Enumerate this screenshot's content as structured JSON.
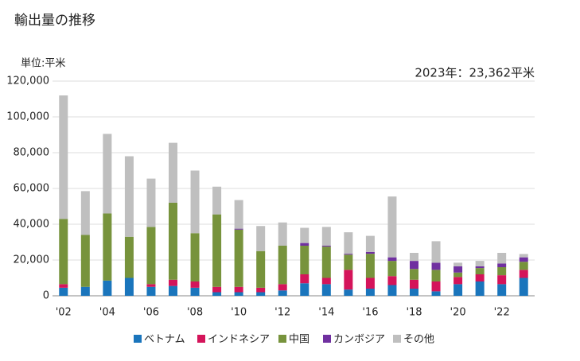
{
  "chart_data": {
    "type": "stacked-bar",
    "title": "輸出量の推移",
    "unit_label": "単位:平米",
    "annotation": "2023年：23,362平米",
    "categories": [
      "'02",
      null,
      "'04",
      null,
      "'06",
      null,
      "'08",
      null,
      "'10",
      null,
      "'12",
      null,
      "'14",
      null,
      "'16",
      null,
      "'18",
      null,
      "'20",
      null,
      "'22",
      null
    ],
    "series": [
      {
        "name": "ベトナム",
        "color": "#1a75bc",
        "values": [
          4500,
          5000,
          8500,
          10000,
          5000,
          5500,
          4500,
          2000,
          2000,
          2000,
          3000,
          7000,
          6500,
          3500,
          4000,
          6000,
          4000,
          2500,
          6500,
          8000,
          6500,
          10000
        ]
      },
      {
        "name": "インドネシア",
        "color": "#d4145a",
        "values": [
          2000,
          0,
          0,
          0,
          1500,
          3500,
          3500,
          3000,
          3000,
          2500,
          3500,
          5000,
          3500,
          11000,
          6000,
          5000,
          5000,
          5500,
          4000,
          4000,
          5000,
          4500
        ]
      },
      {
        "name": "中国",
        "color": "#77933c",
        "values": [
          36500,
          29000,
          37500,
          23000,
          32000,
          43000,
          27000,
          40500,
          32000,
          20500,
          21500,
          16000,
          17500,
          8500,
          13500,
          8500,
          6000,
          6500,
          2500,
          3500,
          4500,
          4500
        ]
      },
      {
        "name": "カンボジア",
        "color": "#7030a0",
        "values": [
          0,
          0,
          0,
          0,
          0,
          0,
          0,
          0,
          500,
          0,
          0,
          1500,
          500,
          500,
          1000,
          2000,
          4500,
          4000,
          3500,
          1000,
          2000,
          2500
        ]
      },
      {
        "name": "その他",
        "color": "#bfbfbf",
        "values": [
          69000,
          24500,
          44500,
          45000,
          27000,
          33500,
          35000,
          15500,
          16000,
          14000,
          13000,
          8500,
          10500,
          12000,
          9000,
          34000,
          4500,
          12000,
          2000,
          3000,
          6000,
          1862
        ]
      }
    ],
    "ylim": [
      0,
      120000
    ],
    "yticks": [
      0,
      {
        "value": 20000,
        "label": "20,000"
      },
      {
        "value": 40000,
        "label": "40,000"
      },
      {
        "value": 60000,
        "label": "60,000"
      },
      {
        "value": 80000,
        "label": "80,000"
      },
      {
        "value": 100000,
        "label": "100,000"
      },
      {
        "value": 120000,
        "label": "120,000"
      }
    ],
    "grid": true
  }
}
